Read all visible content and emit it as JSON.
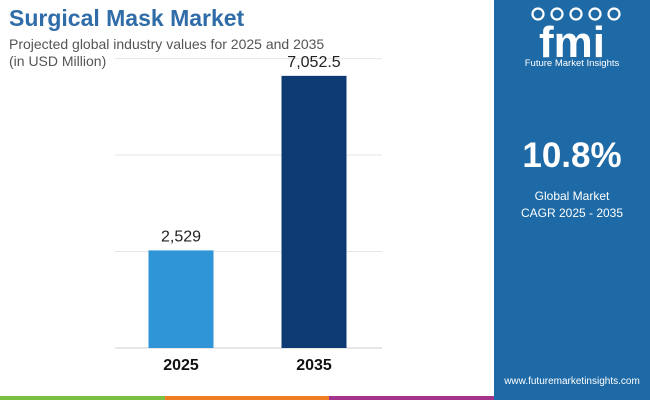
{
  "header": {
    "title": "Surgical Mask Market",
    "subtitle_line1": "Projected global industry values for 2025 and 2035",
    "subtitle_line2": "(in USD Million)"
  },
  "chart_data": {
    "type": "bar",
    "title": "Surgical Mask Market",
    "categories": [
      "2025",
      "2035"
    ],
    "values": [
      2529,
      7052.5
    ],
    "data_labels": [
      "2,529",
      "7,052.5"
    ],
    "bar_colors": [
      "#2f95d6",
      "#0d3a73"
    ],
    "xlabel": "",
    "ylabel": "",
    "ylim": [
      0,
      8500
    ],
    "grid": true
  },
  "side_panel": {
    "logo_name": "Future Market Insights",
    "logo_letters": "fmi",
    "cagr_value": "10.8%",
    "cagr_label_line1": "Global Market",
    "cagr_label_line2": "CAGR 2025 - 2035",
    "website": "www.futuremarketinsights.com",
    "background_color": "#1e6aa6"
  },
  "footer": {
    "strip_colors": [
      "#7bc043",
      "#ee7d24",
      "#a3338b"
    ]
  }
}
